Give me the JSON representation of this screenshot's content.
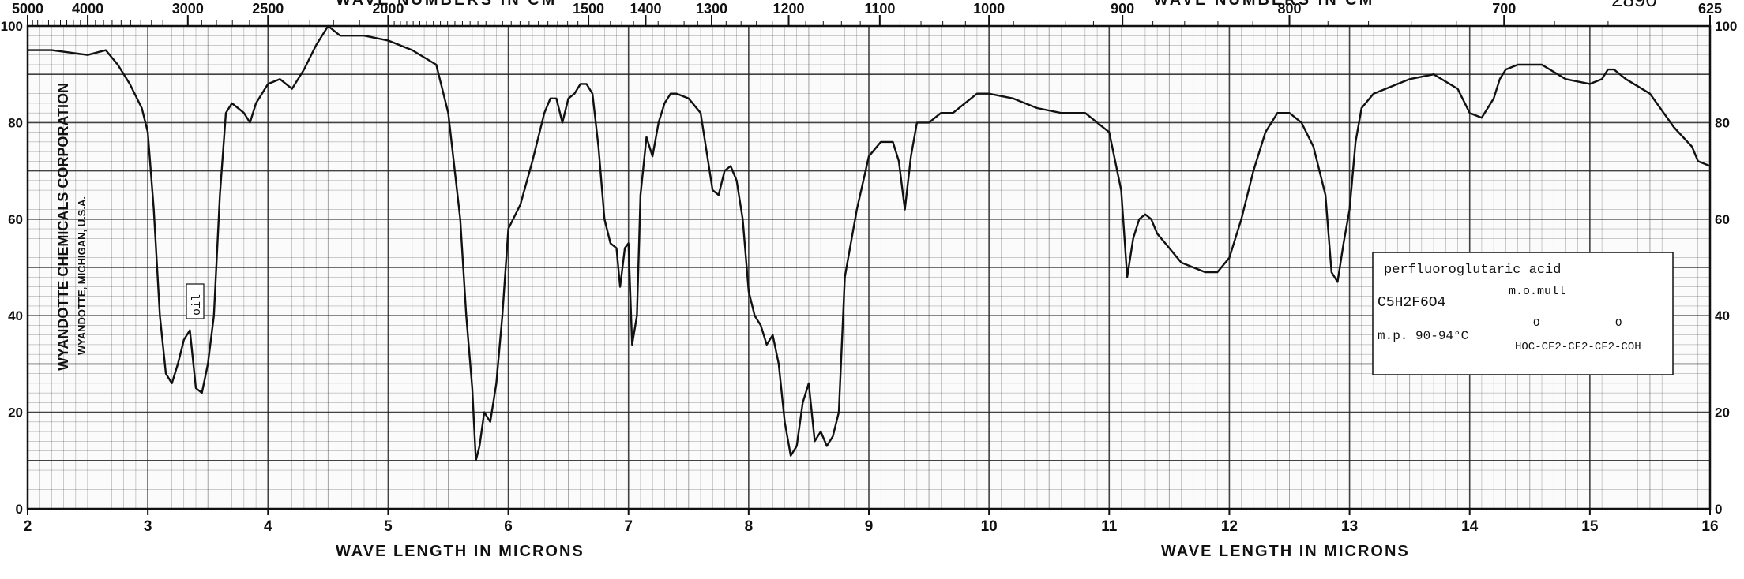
{
  "page": {
    "top_label_left": "WAVE NUMBERS IN CM",
    "top_label_right": "WAVE NUMBERS IN CM",
    "top_right_mark": "2890",
    "bottom_label_left": "WAVE LENGTH IN MICRONS",
    "bottom_label_right": "WAVE LENGTH IN MICRONS",
    "vertical_brand": "WYANDOTTE CHEMICALS CORPORATION",
    "vertical_location": "WYANDOTTE, MICHIGAN, U.S.A.",
    "oil_note": "oil"
  },
  "annotation": {
    "compound": "perfluoroglutaric acid",
    "method": "m.o.mull",
    "formula": "C5H2F6O4",
    "mp": "m.p. 90-94°C",
    "structure": "HOC-CF2-CF2-CF2-COH",
    "carbonyl_o_left": "O",
    "carbonyl_o_right": "O"
  },
  "colors": {
    "ink": "#111111",
    "grid": "#222222",
    "paper": "#ffffff"
  },
  "chart_data": {
    "type": "line",
    "title": "",
    "xlabel": "WAVE LENGTH IN MICRONS",
    "ylabel": "",
    "xlim": [
      2,
      16
    ],
    "ylim": [
      0,
      100
    ],
    "grid": true,
    "x_ticks": [
      "2",
      "3",
      "4",
      "5",
      "6",
      "7",
      "8",
      "9",
      "10",
      "11",
      "12",
      "13",
      "14",
      "15",
      "16"
    ],
    "y_ticks": [
      "0",
      "20",
      "40",
      "60",
      "80",
      "100"
    ],
    "wavenumber_ticks": [
      {
        "label": "5000",
        "micron": 2.0
      },
      {
        "label": "4000",
        "micron": 2.5
      },
      {
        "label": "3000",
        "micron": 3.333
      },
      {
        "label": "2500",
        "micron": 4.0
      },
      {
        "label": "2000",
        "micron": 5.0
      },
      {
        "label": "1500",
        "micron": 6.667
      },
      {
        "label": "1400",
        "micron": 7.143
      },
      {
        "label": "1300",
        "micron": 7.692
      },
      {
        "label": "1200",
        "micron": 8.333
      },
      {
        "label": "1100",
        "micron": 9.091
      },
      {
        "label": "1000",
        "micron": 10.0
      },
      {
        "label": "900",
        "micron": 11.111
      },
      {
        "label": "800",
        "micron": 12.5
      },
      {
        "label": "700",
        "micron": 14.286
      },
      {
        "label": "625",
        "micron": 16.0
      }
    ],
    "series": [
      {
        "x": [
          2.0,
          2.2,
          2.5,
          2.65,
          2.75,
          2.85,
          2.95,
          3.0,
          3.05,
          3.1,
          3.15,
          3.2,
          3.25,
          3.3,
          3.35,
          3.4,
          3.45,
          3.5,
          3.55,
          3.6,
          3.65,
          3.7,
          3.75,
          3.8,
          3.85,
          3.9,
          4.0,
          4.1,
          4.2,
          4.3,
          4.4,
          4.5,
          4.6,
          4.8,
          5.0,
          5.2,
          5.4,
          5.5,
          5.6,
          5.65,
          5.7,
          5.73,
          5.76,
          5.8,
          5.85,
          5.9,
          5.95,
          6.0,
          6.1,
          6.2,
          6.3,
          6.35,
          6.4,
          6.45,
          6.5,
          6.55,
          6.6,
          6.65,
          6.7,
          6.75,
          6.8,
          6.85,
          6.9,
          6.93,
          6.97,
          7.0,
          7.03,
          7.07,
          7.1,
          7.15,
          7.2,
          7.25,
          7.3,
          7.35,
          7.4,
          7.5,
          7.6,
          7.7,
          7.75,
          7.8,
          7.85,
          7.9,
          7.95,
          8.0,
          8.05,
          8.1,
          8.15,
          8.2,
          8.25,
          8.3,
          8.35,
          8.4,
          8.45,
          8.5,
          8.55,
          8.6,
          8.65,
          8.7,
          8.75,
          8.8,
          8.9,
          9.0,
          9.1,
          9.2,
          9.25,
          9.3,
          9.35,
          9.4,
          9.5,
          9.6,
          9.7,
          9.8,
          9.9,
          10.0,
          10.2,
          10.4,
          10.6,
          10.8,
          10.9,
          11.0,
          11.1,
          11.15,
          11.2,
          11.25,
          11.3,
          11.35,
          11.4,
          11.5,
          11.6,
          11.7,
          11.8,
          11.9,
          12.0,
          12.1,
          12.2,
          12.3,
          12.4,
          12.5,
          12.6,
          12.7,
          12.8,
          12.85,
          12.9,
          12.95,
          13.0,
          13.05,
          13.1,
          13.2,
          13.3,
          13.5,
          13.7,
          13.9,
          14.0,
          14.1,
          14.2,
          14.25,
          14.3,
          14.4,
          14.6,
          14.8,
          15.0,
          15.1,
          15.15,
          15.2,
          15.3,
          15.5,
          15.7,
          15.85,
          15.9,
          16.0
        ],
        "y": [
          95,
          95,
          94,
          95,
          92,
          88,
          83,
          78,
          62,
          40,
          28,
          26,
          30,
          35,
          37,
          25,
          24,
          30,
          40,
          65,
          82,
          84,
          83,
          82,
          80,
          84,
          88,
          89,
          87,
          91,
          96,
          100,
          98,
          98,
          97,
          95,
          92,
          82,
          60,
          40,
          25,
          10,
          13,
          20,
          18,
          26,
          40,
          58,
          63,
          72,
          82,
          85,
          85,
          80,
          85,
          86,
          88,
          88,
          86,
          75,
          60,
          55,
          54,
          46,
          54,
          55,
          34,
          40,
          65,
          77,
          73,
          80,
          84,
          86,
          86,
          85,
          82,
          66,
          65,
          70,
          71,
          68,
          60,
          45,
          40,
          38,
          34,
          36,
          30,
          18,
          11,
          13,
          22,
          26,
          14,
          16,
          13,
          15,
          20,
          48,
          62,
          73,
          76,
          76,
          72,
          62,
          73,
          80,
          80,
          82,
          82,
          84,
          86,
          86,
          85,
          83,
          82,
          82,
          80,
          78,
          66,
          48,
          56,
          60,
          61,
          60,
          57,
          54,
          51,
          50,
          49,
          49,
          52,
          60,
          70,
          78,
          82,
          82,
          80,
          75,
          65,
          49,
          47,
          55,
          62,
          76,
          83,
          86,
          87,
          89,
          90,
          87,
          82,
          81,
          85,
          89,
          91,
          92,
          92,
          89,
          88,
          89,
          91,
          91,
          89,
          86,
          79,
          75,
          72,
          71
        ]
      }
    ]
  }
}
